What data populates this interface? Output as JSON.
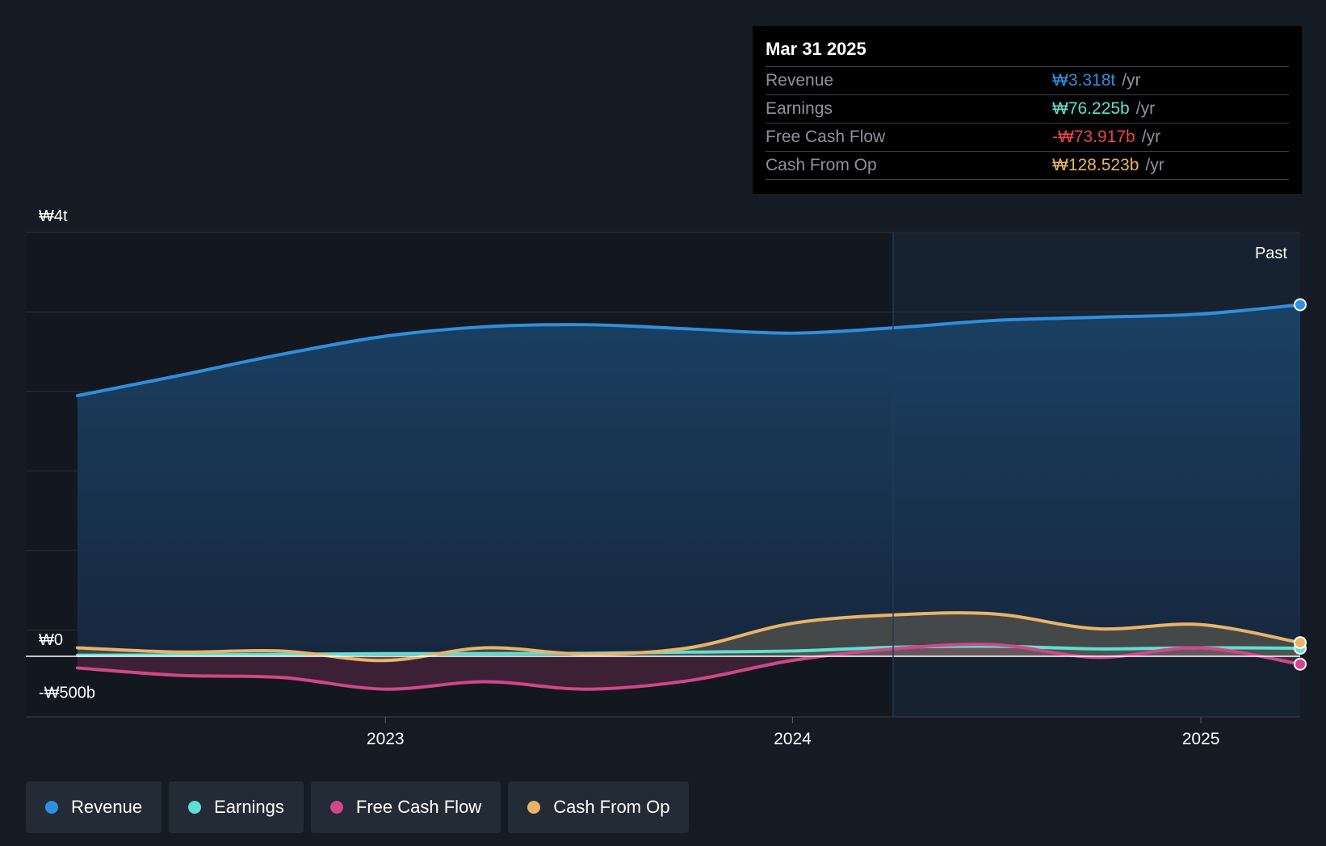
{
  "chart_data": {
    "type": "area",
    "title": "",
    "xlabel": "",
    "ylabel": "",
    "ylim": [
      -500,
      4000
    ],
    "y_unit": "billion KRW",
    "x_ticks": [
      "2023",
      "2024",
      "2025"
    ],
    "y_tick_labels": [
      {
        "value": 4000,
        "label": "₩4t"
      },
      {
        "value": 0,
        "label": "₩0"
      },
      {
        "value": -500,
        "label": "-₩500b"
      }
    ],
    "grid": true,
    "past_label": "Past",
    "series": [
      {
        "name": "Revenue",
        "color": "#2f8fde",
        "x": [
          "2022-03-31",
          "2022-06-30",
          "2022-09-30",
          "2022-12-31",
          "2023-03-31",
          "2023-06-30",
          "2023-09-30",
          "2023-12-31",
          "2024-03-31",
          "2024-06-30",
          "2024-09-30",
          "2024-12-31",
          "2025-03-31"
        ],
        "values": [
          2460,
          2650,
          2850,
          3020,
          3110,
          3130,
          3090,
          3050,
          3100,
          3170,
          3200,
          3230,
          3318
        ]
      },
      {
        "name": "Earnings",
        "color": "#5fe0d2",
        "x": [
          "2022-03-31",
          "2022-06-30",
          "2022-09-30",
          "2022-12-31",
          "2023-03-31",
          "2023-06-30",
          "2023-09-30",
          "2023-12-31",
          "2024-03-31",
          "2024-06-30",
          "2024-09-30",
          "2024-12-31",
          "2025-03-31"
        ],
        "values": [
          10,
          12,
          18,
          25,
          25,
          28,
          40,
          50,
          85,
          95,
          70,
          80,
          76
        ]
      },
      {
        "name": "Free Cash Flow",
        "color": "#d0478a",
        "x": [
          "2022-03-31",
          "2022-06-30",
          "2022-09-30",
          "2022-12-31",
          "2023-03-31",
          "2023-06-30",
          "2023-09-30",
          "2023-12-31",
          "2024-03-31",
          "2024-06-30",
          "2024-09-30",
          "2024-12-31",
          "2025-03-31"
        ],
        "values": [
          -110,
          -180,
          -200,
          -310,
          -240,
          -310,
          -230,
          -40,
          70,
          110,
          -10,
          80,
          -74
        ]
      },
      {
        "name": "Cash From Op",
        "color": "#e9b469",
        "x": [
          "2022-03-31",
          "2022-06-30",
          "2022-09-30",
          "2022-12-31",
          "2023-03-31",
          "2023-06-30",
          "2023-09-30",
          "2023-12-31",
          "2024-03-31",
          "2024-06-30",
          "2024-09-30",
          "2024-12-31",
          "2025-03-31"
        ],
        "values": [
          80,
          40,
          50,
          -40,
          80,
          20,
          80,
          310,
          390,
          400,
          260,
          300,
          129
        ]
      }
    ]
  },
  "tooltip": {
    "date": "Mar 31 2025",
    "rows": [
      {
        "label": "Revenue",
        "value": "₩3.318t",
        "unit": "/yr",
        "color": "#2f8fde"
      },
      {
        "label": "Earnings",
        "value": "₩76.225b",
        "unit": "/yr",
        "color": "#5fe0d2"
      },
      {
        "label": "Free Cash Flow",
        "value": "-₩73.917b",
        "unit": "/yr",
        "color": "#e8454f"
      },
      {
        "label": "Cash From Op",
        "value": "₩128.523b",
        "unit": "/yr",
        "color": "#e9b469"
      }
    ]
  },
  "legend": [
    {
      "label": "Revenue",
      "color": "#2f8fde"
    },
    {
      "label": "Earnings",
      "color": "#5fe0d2"
    },
    {
      "label": "Free Cash Flow",
      "color": "#d0478a"
    },
    {
      "label": "Cash From Op",
      "color": "#e9b469"
    }
  ]
}
